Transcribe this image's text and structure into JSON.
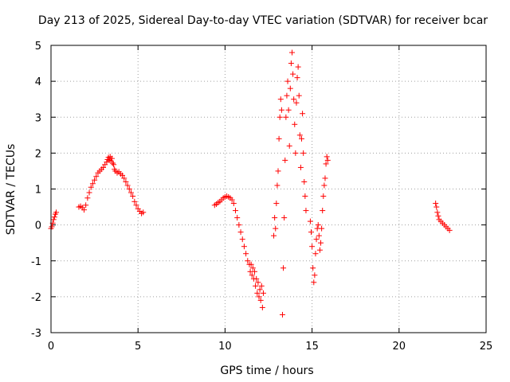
{
  "chart_data": {
    "type": "scatter",
    "title": "Day 213 of 2025, Sidereal Day-to-day VTEC variation (SDTVAR) for receiver bcar",
    "xlabel": "GPS time / hours",
    "ylabel": "SDTVAR / TECUs",
    "xlim": [
      0,
      25
    ],
    "ylim": [
      -3,
      5
    ],
    "xticks": [
      0,
      5,
      10,
      15,
      20,
      25
    ],
    "yticks": [
      -3,
      -2,
      -1,
      0,
      1,
      2,
      3,
      4,
      5
    ],
    "grid": true,
    "marker": "+",
    "color": "#ff0000",
    "series": [
      {
        "name": "SDTVAR",
        "points": [
          [
            0.0,
            -0.1
          ],
          [
            0.05,
            -0.05
          ],
          [
            0.1,
            0.05
          ],
          [
            0.15,
            0.15
          ],
          [
            0.2,
            0.22
          ],
          [
            0.25,
            0.3
          ],
          [
            0.3,
            0.35
          ],
          [
            1.6,
            0.5
          ],
          [
            1.7,
            0.52
          ],
          [
            1.8,
            0.48
          ],
          [
            1.9,
            0.42
          ],
          [
            2.0,
            0.55
          ],
          [
            2.1,
            0.75
          ],
          [
            2.2,
            0.9
          ],
          [
            2.3,
            1.05
          ],
          [
            2.4,
            1.15
          ],
          [
            2.5,
            1.25
          ],
          [
            2.6,
            1.35
          ],
          [
            2.7,
            1.45
          ],
          [
            2.8,
            1.5
          ],
          [
            2.9,
            1.55
          ],
          [
            3.0,
            1.6
          ],
          [
            3.1,
            1.68
          ],
          [
            3.2,
            1.75
          ],
          [
            3.25,
            1.82
          ],
          [
            3.3,
            1.88
          ],
          [
            3.35,
            1.8
          ],
          [
            3.4,
            1.9
          ],
          [
            3.45,
            1.78
          ],
          [
            3.5,
            1.85
          ],
          [
            3.55,
            1.72
          ],
          [
            3.6,
            1.68
          ],
          [
            3.65,
            1.55
          ],
          [
            3.7,
            1.5
          ],
          [
            3.8,
            1.45
          ],
          [
            3.9,
            1.48
          ],
          [
            4.0,
            1.42
          ],
          [
            4.1,
            1.38
          ],
          [
            4.2,
            1.3
          ],
          [
            4.3,
            1.2
          ],
          [
            4.4,
            1.1
          ],
          [
            4.5,
            1.0
          ],
          [
            4.6,
            0.9
          ],
          [
            4.7,
            0.8
          ],
          [
            4.8,
            0.65
          ],
          [
            4.9,
            0.55
          ],
          [
            5.0,
            0.45
          ],
          [
            5.1,
            0.38
          ],
          [
            5.2,
            0.32
          ],
          [
            5.3,
            0.35
          ],
          [
            9.4,
            0.55
          ],
          [
            9.5,
            0.58
          ],
          [
            9.6,
            0.62
          ],
          [
            9.7,
            0.65
          ],
          [
            9.8,
            0.7
          ],
          [
            9.9,
            0.75
          ],
          [
            10.0,
            0.78
          ],
          [
            10.1,
            0.8
          ],
          [
            10.2,
            0.78
          ],
          [
            10.3,
            0.75
          ],
          [
            10.4,
            0.7
          ],
          [
            10.5,
            0.6
          ],
          [
            10.6,
            0.4
          ],
          [
            10.7,
            0.2
          ],
          [
            10.8,
            0.0
          ],
          [
            10.9,
            -0.2
          ],
          [
            11.0,
            -0.4
          ],
          [
            11.1,
            -0.6
          ],
          [
            11.2,
            -0.8
          ],
          [
            11.3,
            -1.0
          ],
          [
            11.4,
            -1.1
          ],
          [
            11.45,
            -1.3
          ],
          [
            11.5,
            -1.1
          ],
          [
            11.55,
            -1.4
          ],
          [
            11.6,
            -1.2
          ],
          [
            11.65,
            -1.5
          ],
          [
            11.7,
            -1.3
          ],
          [
            11.75,
            -1.7
          ],
          [
            11.8,
            -1.5
          ],
          [
            11.85,
            -1.9
          ],
          [
            11.9,
            -1.6
          ],
          [
            11.95,
            -2.0
          ],
          [
            12.0,
            -1.8
          ],
          [
            12.05,
            -2.1
          ],
          [
            12.1,
            -1.7
          ],
          [
            12.15,
            -2.3
          ],
          [
            12.2,
            -1.9
          ],
          [
            12.8,
            -0.3
          ],
          [
            12.85,
            0.2
          ],
          [
            12.9,
            -0.1
          ],
          [
            12.95,
            0.6
          ],
          [
            13.0,
            1.1
          ],
          [
            13.05,
            1.5
          ],
          [
            13.1,
            2.4
          ],
          [
            13.15,
            3.0
          ],
          [
            13.2,
            3.5
          ],
          [
            13.25,
            3.2
          ],
          [
            13.3,
            -2.5
          ],
          [
            13.35,
            -1.2
          ],
          [
            13.4,
            0.2
          ],
          [
            13.45,
            1.8
          ],
          [
            13.5,
            3.0
          ],
          [
            13.55,
            3.6
          ],
          [
            13.6,
            4.0
          ],
          [
            13.65,
            3.2
          ],
          [
            13.7,
            2.2
          ],
          [
            13.75,
            3.8
          ],
          [
            13.8,
            4.5
          ],
          [
            13.85,
            4.8
          ],
          [
            13.9,
            4.2
          ],
          [
            13.95,
            3.5
          ],
          [
            14.0,
            2.8
          ],
          [
            14.05,
            2.0
          ],
          [
            14.1,
            3.4
          ],
          [
            14.15,
            4.1
          ],
          [
            14.2,
            4.4
          ],
          [
            14.25,
            3.6
          ],
          [
            14.3,
            2.5
          ],
          [
            14.35,
            1.6
          ],
          [
            14.4,
            2.4
          ],
          [
            14.45,
            3.1
          ],
          [
            14.5,
            2.0
          ],
          [
            14.55,
            1.2
          ],
          [
            14.6,
            0.8
          ],
          [
            14.65,
            0.4
          ],
          [
            14.9,
            0.1
          ],
          [
            14.95,
            -0.2
          ],
          [
            15.0,
            -0.6
          ],
          [
            15.05,
            -1.2
          ],
          [
            15.1,
            -1.6
          ],
          [
            15.15,
            -1.4
          ],
          [
            15.2,
            -0.8
          ],
          [
            15.25,
            -0.4
          ],
          [
            15.3,
            -0.1
          ],
          [
            15.35,
            0.0
          ],
          [
            15.4,
            -0.3
          ],
          [
            15.45,
            -0.7
          ],
          [
            15.5,
            -0.5
          ],
          [
            15.55,
            -0.1
          ],
          [
            15.6,
            0.4
          ],
          [
            15.65,
            0.8
          ],
          [
            15.7,
            1.1
          ],
          [
            15.75,
            1.3
          ],
          [
            15.8,
            1.7
          ],
          [
            15.85,
            1.9
          ],
          [
            15.9,
            1.8
          ],
          [
            22.1,
            0.6
          ],
          [
            22.15,
            0.5
          ],
          [
            22.2,
            0.35
          ],
          [
            22.25,
            0.25
          ],
          [
            22.3,
            0.15
          ],
          [
            22.4,
            0.1
          ],
          [
            22.5,
            0.05
          ],
          [
            22.6,
            0.0
          ],
          [
            22.7,
            -0.05
          ],
          [
            22.8,
            -0.1
          ],
          [
            22.9,
            -0.15
          ]
        ]
      }
    ]
  }
}
